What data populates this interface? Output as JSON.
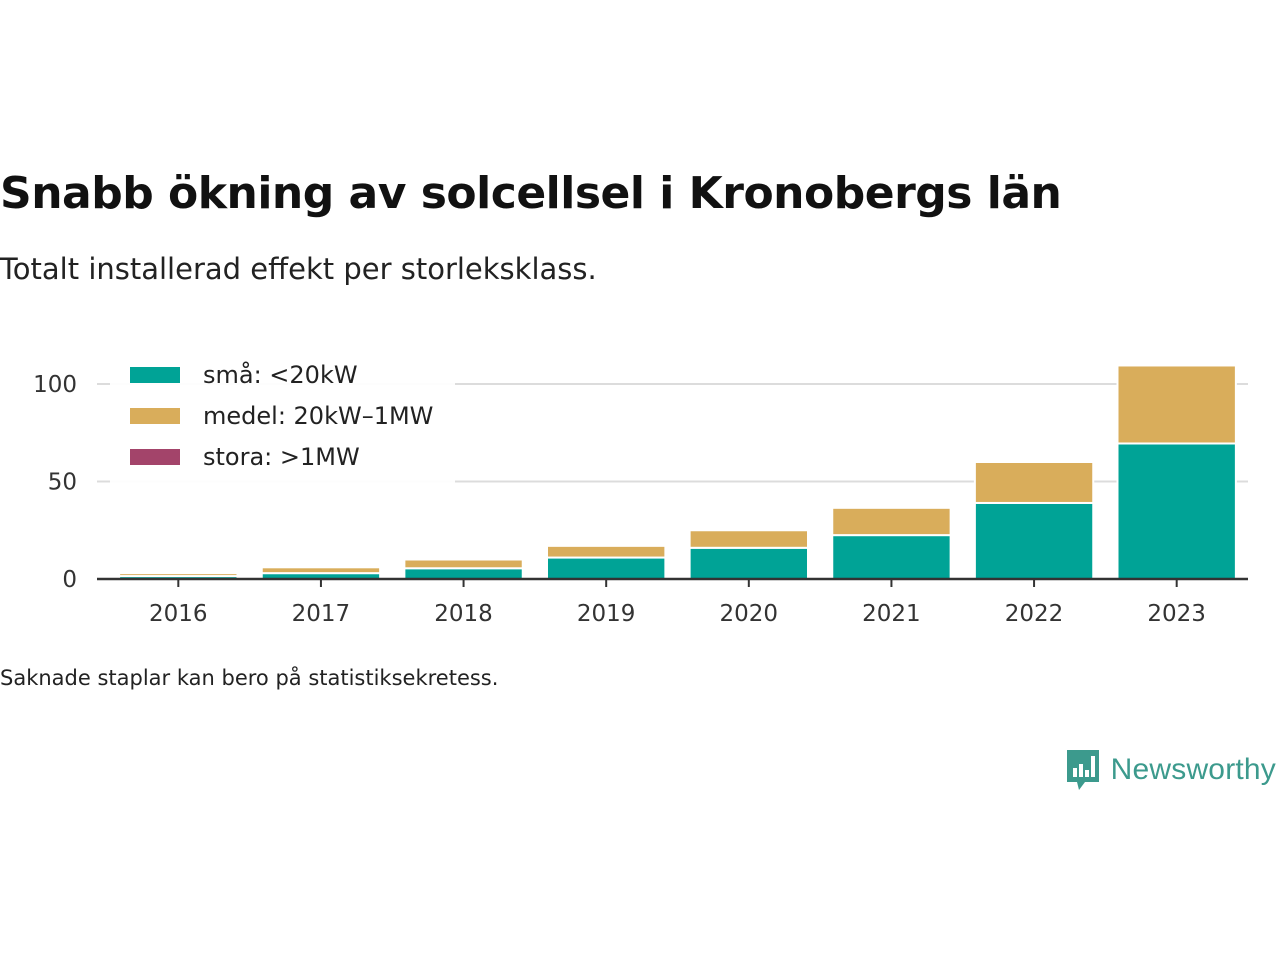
{
  "title": "Snabb ökning av solcellsel i Kronobergs län",
  "subtitle": "Totalt installerad effekt per storleksklass.",
  "note": "Saknade staplar kan bero på statistiksekretess.",
  "brand": {
    "name": "Newsworthy",
    "icon": "newsworthy-logo-icon",
    "color": "#3c9a8d"
  },
  "chart_data": {
    "type": "bar",
    "stacked": true,
    "categories": [
      "2016",
      "2017",
      "2018",
      "2019",
      "2020",
      "2021",
      "2022",
      "2023"
    ],
    "series": [
      {
        "name": "små: <20kW",
        "color": "#00a396",
        "values": [
          1.5,
          3,
          5.5,
          11,
          16,
          22.5,
          39,
          69.5
        ]
      },
      {
        "name": "medel: 20kW–1MW",
        "color": "#d9ad5b",
        "values": [
          1.5,
          3,
          4.5,
          6,
          9,
          14,
          21,
          40
        ]
      },
      {
        "name": "stora: >1MW",
        "color": "#a3446a",
        "values": [
          0,
          0,
          0,
          0,
          0,
          0,
          0,
          0
        ]
      }
    ],
    "ylim": [
      0,
      110
    ],
    "yticks": [
      0,
      50,
      100
    ],
    "grid": true,
    "legend_position": "top-left"
  }
}
